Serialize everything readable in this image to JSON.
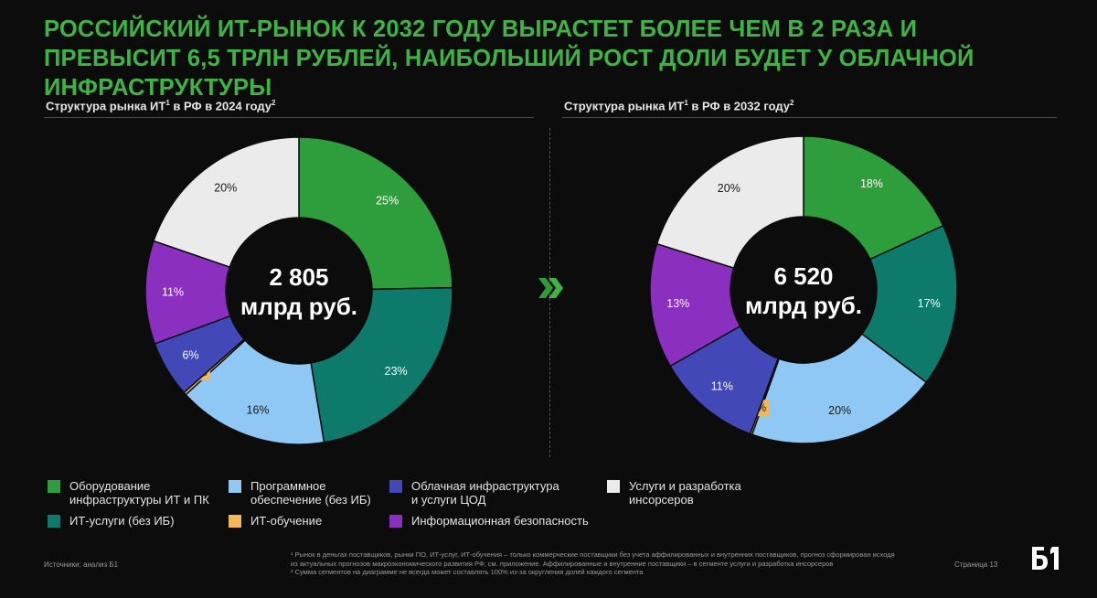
{
  "headline": "РОССИЙСКИЙ ИТ-РЫНОК К 2032 ГОДУ ВЫРАСТЕТ БОЛЕЕ ЧЕМ В 2 РАЗА И ПРЕВЫСИТ 6,5 ТРЛН РУБЛЕЙ, НАИБОЛЬШИЙ РОСТ ДОЛИ БУДЕТ У ОБЛАЧНОЙ ИНФРАСТРУКТУРЫ",
  "colors": {
    "hardware": "#2e9e3c",
    "it_services": "#0e7a6c",
    "software": "#8fc8f5",
    "it_training": "#f2b75a",
    "cloud": "#4348b8",
    "infosec": "#8a2fbf",
    "custom_dev": "#ebebeb",
    "accent": "#3fb445"
  },
  "chart_data": [
    {
      "type": "pie",
      "variant": "donut",
      "title": "Структура рынка ИТ",
      "title_sup1": "1",
      "title_mid": " в РФ в 2024 году",
      "title_sup2": "2",
      "center_value": "2 805",
      "center_unit": "млрд руб.",
      "slices": [
        {
          "label": "Оборудование инфраструктуры ИТ и ПК",
          "value": 25,
          "text": "25%",
          "color": "#2e9e3c",
          "text_color": "#ffffff"
        },
        {
          "label": "ИТ-услуги (без ИБ)",
          "value": 23,
          "text": "23%",
          "color": "#0e7a6c",
          "text_color": "#ffffff"
        },
        {
          "label": "Программное обеспечение (без ИБ)",
          "value": 16,
          "text": "16%",
          "color": "#8fc8f5",
          "text_color": "#1a1a1a"
        },
        {
          "label": "ИТ-обучение",
          "value": 0.3,
          "text": "0,3%",
          "color": "#f2b75a",
          "text_color": "#1a1a1a",
          "callout": true
        },
        {
          "label": "Облачная инфраструктура и услуги ЦОД",
          "value": 6,
          "text": "6%",
          "color": "#4348b8",
          "text_color": "#ffffff"
        },
        {
          "label": "Информационная безопасность",
          "value": 11,
          "text": "11%",
          "color": "#8a2fbf",
          "text_color": "#ffffff"
        },
        {
          "label": "Услуги и разработка инсорсеров",
          "value": 20,
          "text": "20%",
          "color": "#ebebeb",
          "text_color": "#1a1a1a"
        }
      ]
    },
    {
      "type": "pie",
      "variant": "donut",
      "title": "Структура рынка ИТ",
      "title_sup1": "1",
      "title_mid": " в РФ в 2032 году",
      "title_sup2": "2",
      "center_value": "6 520",
      "center_unit": "млрд руб.",
      "slices": [
        {
          "label": "Оборудование инфраструктуры ИТ и ПК",
          "value": 18,
          "text": "18%",
          "color": "#2e9e3c",
          "text_color": "#ffffff"
        },
        {
          "label": "ИТ-услуги (без ИБ)",
          "value": 17,
          "text": "17%",
          "color": "#0e7a6c",
          "text_color": "#ffffff"
        },
        {
          "label": "Программное обеспечение (без ИБ)",
          "value": 20,
          "text": "20%",
          "color": "#8fc8f5",
          "text_color": "#1a1a1a"
        },
        {
          "label": "ИТ-обучение",
          "value": 0.2,
          "text": "0,2%",
          "color": "#f2b75a",
          "text_color": "#1a1a1a",
          "callout": true
        },
        {
          "label": "Облачная инфраструктура и услуги ЦОД",
          "value": 11,
          "text": "11%",
          "color": "#4348b8",
          "text_color": "#ffffff"
        },
        {
          "label": "Информационная безопасность",
          "value": 13,
          "text": "13%",
          "color": "#8a2fbf",
          "text_color": "#ffffff"
        },
        {
          "label": "Услуги и разработка инсорсеров",
          "value": 20,
          "text": "20%",
          "color": "#ebebeb",
          "text_color": "#1a1a1a"
        }
      ]
    }
  ],
  "legend": [
    {
      "label": "Оборудование\nинфраструктуры ИТ и ПК",
      "color": "#2e9e3c"
    },
    {
      "label": "Программное\nобеспечение (без ИБ)",
      "color": "#8fc8f5"
    },
    {
      "label": "Облачная инфраструктура\nи услуги ЦОД",
      "color": "#4348b8"
    },
    {
      "label": "Услуги и разработка\nинсорсеров",
      "color": "#ebebeb"
    },
    {
      "label": "ИТ-услуги (без ИБ)",
      "color": "#0e7a6c"
    },
    {
      "label": "ИТ-обучение",
      "color": "#f2b75a"
    },
    {
      "label": "Информационная безопасность",
      "color": "#8a2fbf"
    }
  ],
  "footer": {
    "source": "Источники: анализ Б1",
    "note1": "¹ Рынок в деньгах поставщиков, рынки ПО, ИТ-услуг, ИТ-обучения – только коммерческие поставщики без учета аффилированных и внутренних поставщиков, прогноз сформирован исходя из актуальных прогнозов макроэкономического развития РФ, см. приложение. Аффилированные и внутренние поставщики – в сегменте услуги и разработка инсорсеров",
    "note2": "² Сумма сегментов на диаграмме не всегда может составлять 100% из-за округления долей каждого сегмента",
    "page": "Страница 13",
    "logo_text": "Б1"
  }
}
